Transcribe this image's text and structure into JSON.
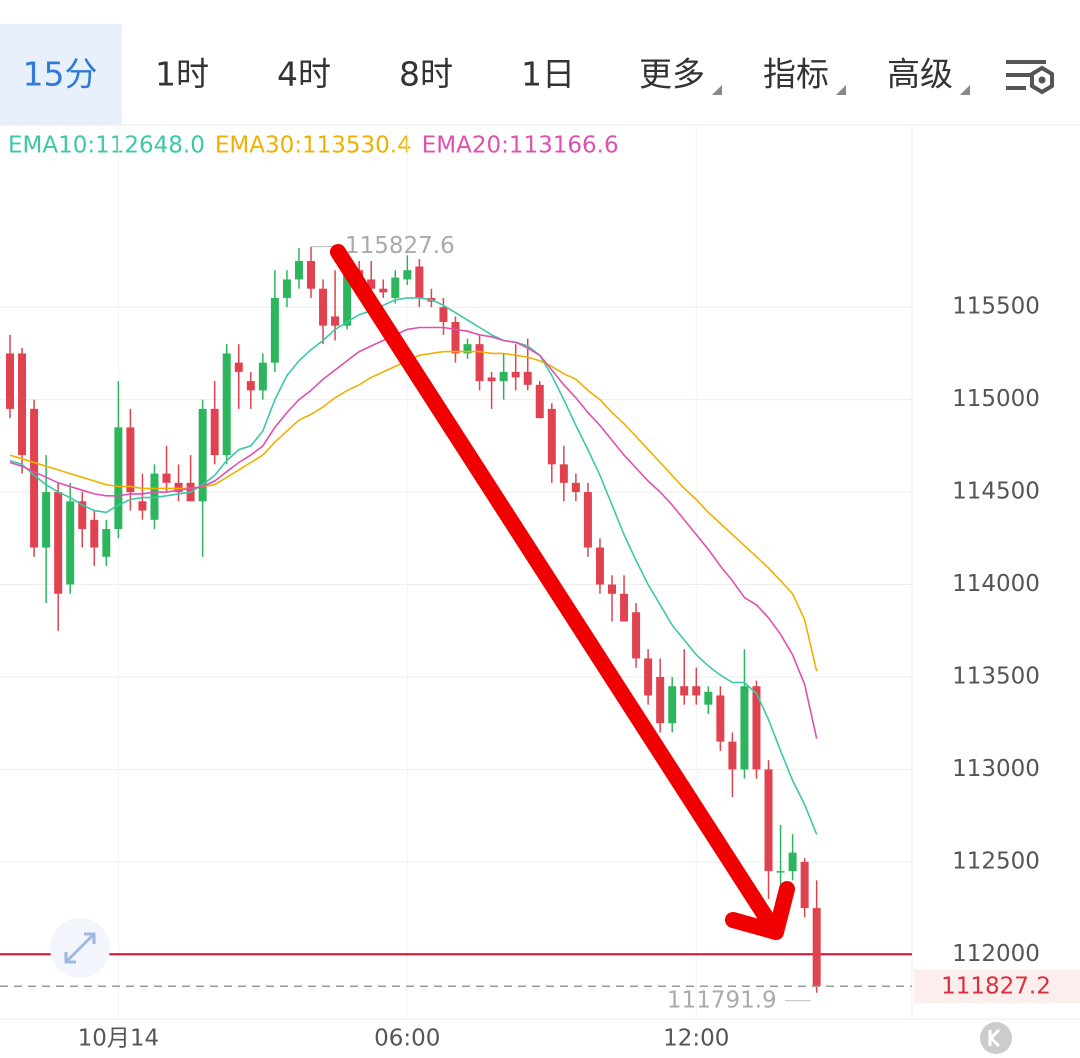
{
  "tabs": [
    {
      "label": "15分",
      "active": true
    },
    {
      "label": "1时"
    },
    {
      "label": "4时"
    },
    {
      "label": "8时"
    },
    {
      "label": "1日"
    },
    {
      "label": "更多",
      "dropdown": true
    },
    {
      "label": "指标",
      "dropdown": true
    },
    {
      "label": "高级",
      "dropdown": true
    }
  ],
  "chart_data": {
    "type": "candlestick",
    "categories": [
      null,
      null,
      null,
      null,
      null,
      null,
      null,
      null,
      null,
      "10月14",
      null,
      null,
      null,
      null,
      null,
      null,
      null,
      null,
      null,
      null,
      null,
      null,
      null,
      null,
      null,
      null,
      null,
      null,
      null,
      null,
      null,
      null,
      null,
      "06:00",
      null,
      null,
      null,
      null,
      null,
      null,
      null,
      null,
      null,
      null,
      null,
      null,
      null,
      null,
      null,
      null,
      null,
      null,
      null,
      null,
      null,
      null,
      null,
      "12:00",
      null,
      null,
      null,
      null,
      null,
      null,
      null,
      null,
      null,
      null
    ],
    "open": [
      115250,
      115250,
      114950,
      114200,
      114500,
      114000,
      114450,
      114350,
      114150,
      114300,
      114850,
      114450,
      114350,
      114600,
      114550,
      114550,
      114450,
      114950,
      114700,
      115200,
      115100,
      115050,
      115200,
      115550,
      115650,
      115750,
      115600,
      115450,
      115400,
      115700,
      115650,
      115600,
      115550,
      115650,
      115720,
      115550,
      115500,
      115420,
      115250,
      115300,
      115120,
      115100,
      115150,
      115150,
      115080,
      114950,
      114650,
      114550,
      114500,
      114200,
      114000,
      113950,
      113850,
      113600,
      113500,
      113250,
      113450,
      113450,
      113350,
      113400,
      113150,
      113000,
      113450,
      113000,
      112450,
      112450,
      112500,
      112250
    ],
    "high": [
      115350,
      115280,
      115000,
      114700,
      114550,
      114550,
      114500,
      114400,
      114350,
      115100,
      114950,
      114600,
      114650,
      114750,
      114650,
      114700,
      115000,
      115100,
      115300,
      115300,
      115150,
      115250,
      115700,
      115700,
      115820,
      115827.6,
      115650,
      115700,
      115720,
      115750,
      115750,
      115650,
      115700,
      115780,
      115760,
      115600,
      115550,
      115450,
      115330,
      115350,
      115150,
      115250,
      115300,
      115330,
      115100,
      114980,
      114750,
      114600,
      114550,
      114250,
      114050,
      114050,
      113900,
      113650,
      113600,
      113500,
      113650,
      113550,
      113450,
      113450,
      113200,
      113650,
      113480,
      113050,
      112700,
      112650,
      112520,
      112400
    ],
    "low": [
      114900,
      114600,
      114150,
      113900,
      113750,
      113950,
      114200,
      114100,
      114100,
      114250,
      114400,
      114350,
      114300,
      114500,
      114450,
      114450,
      114150,
      114650,
      114650,
      114950,
      114950,
      115000,
      115150,
      115500,
      115600,
      115550,
      115300,
      115320,
      115380,
      115550,
      115550,
      115550,
      115520,
      115620,
      115500,
      115500,
      115350,
      115200,
      115220,
      115050,
      114950,
      115000,
      115050,
      115050,
      114900,
      114550,
      114450,
      114450,
      114150,
      113950,
      113800,
      113800,
      113550,
      113350,
      113200,
      113200,
      113350,
      113350,
      113300,
      113100,
      112850,
      112950,
      112950,
      112300,
      112250,
      112400,
      112200,
      111791.9
    ],
    "close": [
      114950,
      114700,
      114200,
      114500,
      113950,
      114450,
      114300,
      114200,
      114300,
      114850,
      114500,
      114400,
      114600,
      114550,
      114500,
      114450,
      114950,
      114700,
      115250,
      115150,
      115050,
      115200,
      115550,
      115650,
      115750,
      115600,
      115400,
      115400,
      115700,
      115600,
      115600,
      115580,
      115660,
      115700,
      115550,
      115530,
      115420,
      115250,
      115300,
      115100,
      115100,
      115150,
      115120,
      115080,
      114900,
      114650,
      114550,
      114500,
      114200,
      114000,
      113950,
      113800,
      113600,
      113400,
      113250,
      113450,
      113400,
      113400,
      113420,
      113150,
      113000,
      113450,
      113000,
      112450,
      112450,
      112550,
      112250,
      111827.2
    ],
    "up_color": "#2db55d",
    "down_color": "#e0434f",
    "series": [
      {
        "name": "EMA10:112648.0",
        "color": "#3cc8a8",
        "values": [
          114670,
          114650,
          114590,
          114540,
          114500,
          114470,
          114430,
          114400,
          114390,
          114430,
          114460,
          114470,
          114470,
          114480,
          114490,
          114500,
          114540,
          114590,
          114670,
          114730,
          114750,
          114830,
          115000,
          115130,
          115210,
          115270,
          115320,
          115380,
          115420,
          115460,
          115480,
          115510,
          115540,
          115550,
          115550,
          115540,
          115510,
          115470,
          115430,
          115390,
          115350,
          115320,
          115310,
          115290,
          115240,
          115130,
          115000,
          114860,
          114730,
          114590,
          114430,
          114270,
          114130,
          114000,
          113890,
          113780,
          113700,
          113620,
          113560,
          113510,
          113470,
          113470,
          113410,
          113270,
          113100,
          112940,
          112810,
          112648.0
        ]
      },
      {
        "name": "EMA30:113530.4",
        "color": "#f0b000",
        "values": [
          114700,
          114680,
          114660,
          114640,
          114620,
          114600,
          114580,
          114560,
          114540,
          114530,
          114530,
          114520,
          114520,
          114520,
          114520,
          114520,
          114530,
          114540,
          114580,
          114620,
          114660,
          114700,
          114770,
          114830,
          114890,
          114920,
          114960,
          115010,
          115050,
          115080,
          115120,
          115150,
          115180,
          115210,
          115240,
          115250,
          115260,
          115260,
          115260,
          115260,
          115250,
          115250,
          115240,
          115230,
          115210,
          115180,
          115140,
          115110,
          115050,
          115000,
          114930,
          114870,
          114800,
          114730,
          114660,
          114590,
          114520,
          114460,
          114390,
          114330,
          114270,
          114210,
          114150,
          114090,
          114020,
          113950,
          113810,
          113530.4
        ]
      },
      {
        "name": "EMA20:113166.6",
        "color": "#e050b0",
        "values": [
          114660,
          114640,
          114610,
          114580,
          114550,
          114530,
          114510,
          114490,
          114480,
          114480,
          114490,
          114490,
          114500,
          114500,
          114510,
          114520,
          114530,
          114560,
          114610,
          114660,
          114700,
          114750,
          114850,
          114930,
          115000,
          115050,
          115110,
          115160,
          115210,
          115260,
          115290,
          115320,
          115350,
          115380,
          115390,
          115390,
          115390,
          115380,
          115370,
          115350,
          115340,
          115320,
          115310,
          115280,
          115240,
          115160,
          115080,
          115010,
          114930,
          114860,
          114780,
          114700,
          114630,
          114560,
          114500,
          114430,
          114350,
          114270,
          114190,
          114100,
          114020,
          113930,
          113890,
          113820,
          113730,
          113620,
          113460,
          113166.6
        ]
      }
    ],
    "ylim": [
      111650,
      116480
    ],
    "yticks": [
      112000,
      112500,
      113000,
      113500,
      114000,
      114500,
      115000,
      115500
    ],
    "grid": true,
    "price_line": 112000
  }
}
